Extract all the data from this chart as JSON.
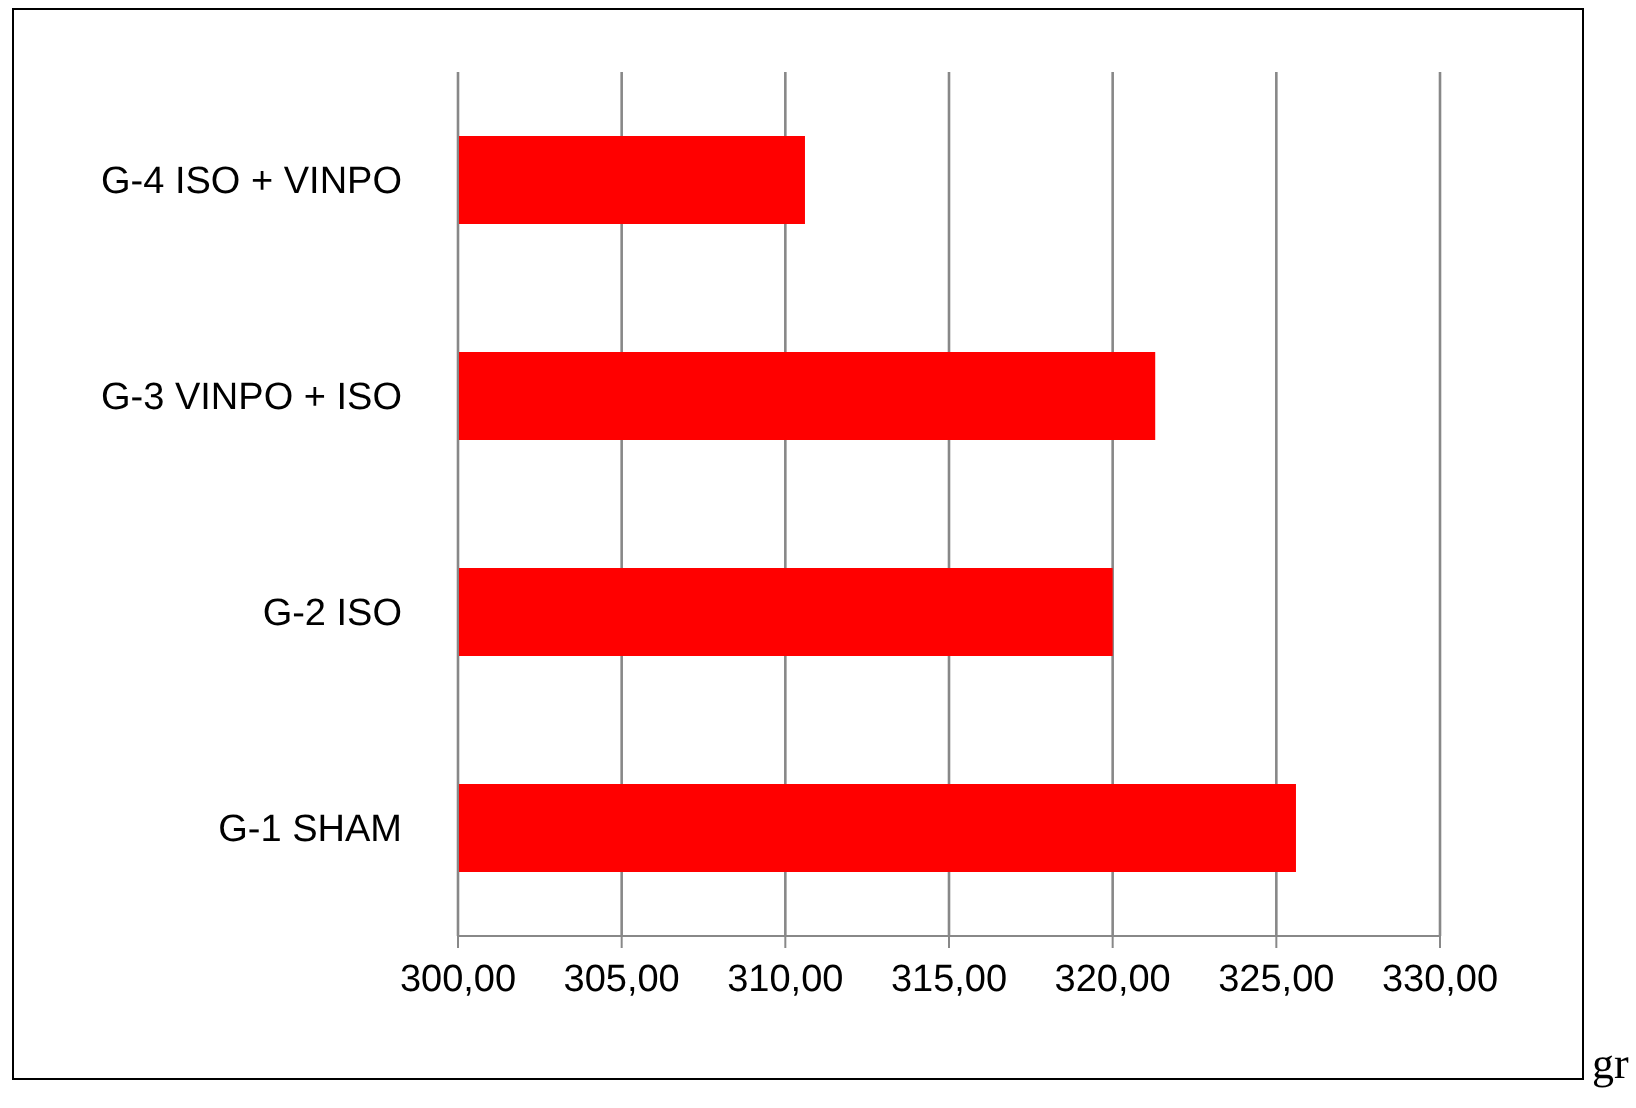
{
  "chart_data": {
    "type": "bar",
    "orientation": "horizontal",
    "xlabel": "gr",
    "categories": [
      "G-4 ISO + VINPO",
      "G-3 VINPO + ISO",
      "G-2 ISO",
      "G-1 SHAM"
    ],
    "values": [
      310.6,
      321.3,
      320.0,
      325.6
    ],
    "color": "#ff0000",
    "xlim": [
      300,
      330
    ],
    "xticks": [
      {
        "value": 300,
        "label": "300,00"
      },
      {
        "value": 305,
        "label": "305,00"
      },
      {
        "value": 310,
        "label": "310,00"
      },
      {
        "value": 315,
        "label": "315,00"
      },
      {
        "value": 320,
        "label": "320,00"
      },
      {
        "value": 325,
        "label": "325,00"
      },
      {
        "value": 330,
        "label": "330,00"
      }
    ],
    "grid": "x",
    "legend": false
  }
}
